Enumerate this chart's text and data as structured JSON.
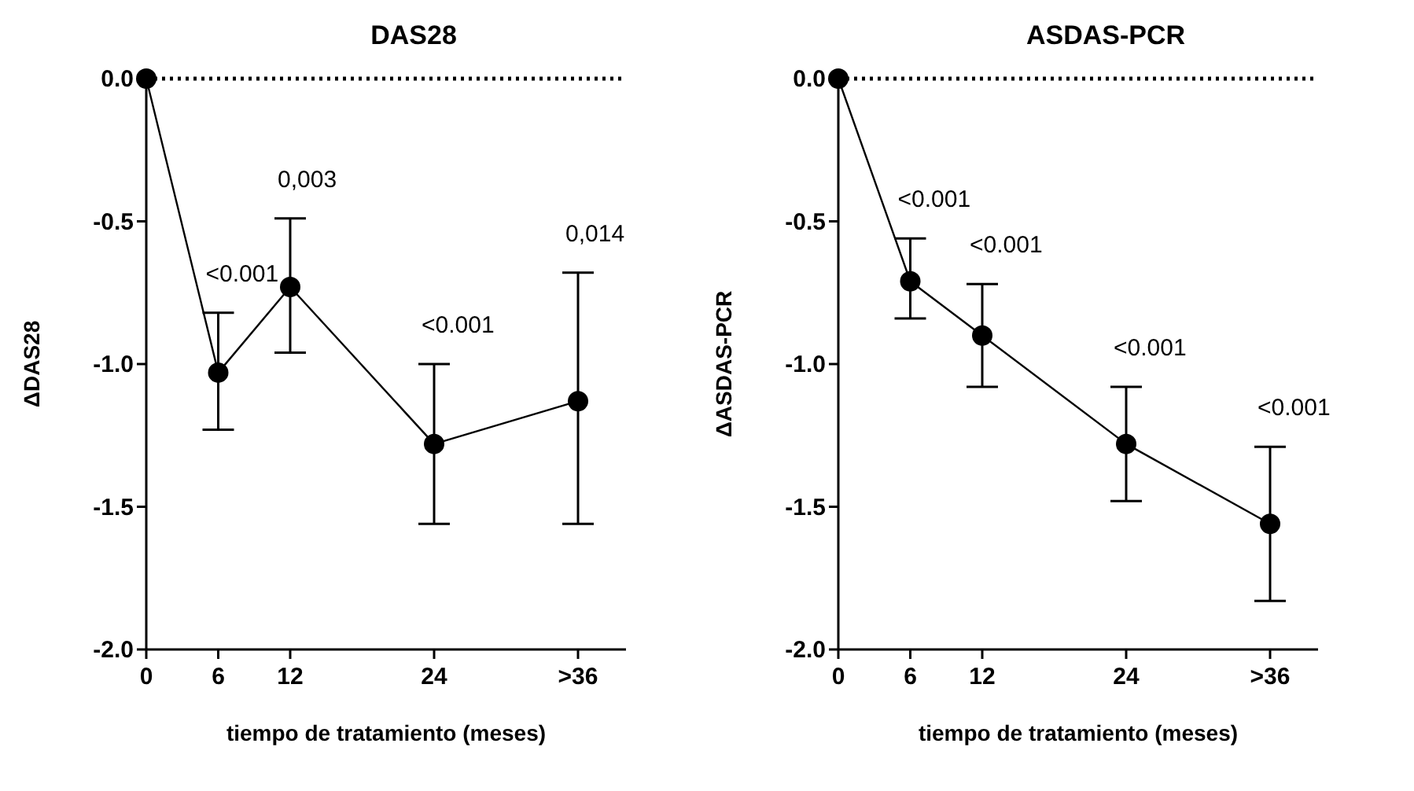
{
  "chart_data": [
    {
      "type": "line",
      "title": "DAS28",
      "xlabel": "tiempo de tratamiento (meses)",
      "ylabel": "ΔDAS28",
      "x": [
        0,
        6,
        12,
        24,
        36
      ],
      "xlim": [
        0,
        40
      ],
      "xticks": [
        0,
        6,
        12,
        24,
        {
          "value": 36,
          "label": ">36"
        }
      ],
      "ylim": [
        -2,
        0
      ],
      "yticks": [
        {
          "value": 0,
          "label": "0.0"
        },
        {
          "value": -0.5,
          "label": "-0.5"
        },
        {
          "value": -1,
          "label": "-1.0"
        },
        {
          "value": -1.5,
          "label": "-1.5"
        },
        {
          "value": -2,
          "label": "-2.0"
        }
      ],
      "grid": false,
      "legend": false,
      "marker": "circle",
      "line_style": "solid",
      "series": [
        {
          "color": "#000000",
          "values": [
            0,
            -1.03,
            -0.73,
            -1.28,
            -1.13
          ],
          "errors": [
            null,
            [
              -1.23,
              -0.82
            ],
            [
              -0.96,
              -0.49
            ],
            [
              -1.56,
              -1.0
            ],
            [
              -1.56,
              -0.68
            ]
          ]
        }
      ],
      "ref_lines": [
        {
          "axis": "y",
          "value": 0,
          "color": "#000000",
          "line_style": "dotted"
        }
      ],
      "annotations": [
        "<0.001",
        "0,003",
        "<0.001",
        "0,014"
      ]
    },
    {
      "type": "line",
      "title": "ASDAS-PCR",
      "xlabel": "tiempo de tratamiento (meses)",
      "ylabel": "ΔASDAS-PCR",
      "x": [
        0,
        6,
        12,
        24,
        36
      ],
      "xlim": [
        0,
        40
      ],
      "xticks": [
        0,
        6,
        12,
        24,
        {
          "value": 36,
          "label": ">36"
        }
      ],
      "ylim": [
        -2,
        0
      ],
      "yticks": [
        {
          "value": 0,
          "label": "0.0"
        },
        {
          "value": -0.5,
          "label": "-0.5"
        },
        {
          "value": -1,
          "label": "-1.0"
        },
        {
          "value": -1.5,
          "label": "-1.5"
        },
        {
          "value": -2,
          "label": "-2.0"
        }
      ],
      "grid": false,
      "legend": false,
      "marker": "circle",
      "line_style": "solid",
      "series": [
        {
          "color": "#000000",
          "values": [
            0,
            -0.71,
            -0.9,
            -1.28,
            -1.56
          ],
          "errors": [
            null,
            [
              -0.84,
              -0.56
            ],
            [
              -1.08,
              -0.72
            ],
            [
              -1.48,
              -1.08
            ],
            [
              -1.83,
              -1.29
            ]
          ]
        }
      ],
      "ref_lines": [
        {
          "axis": "y",
          "value": 0,
          "color": "#000000",
          "line_style": "dotted"
        }
      ],
      "annotations": [
        "<0.001",
        "<0.001",
        "<0.001",
        "<0.001"
      ]
    }
  ]
}
